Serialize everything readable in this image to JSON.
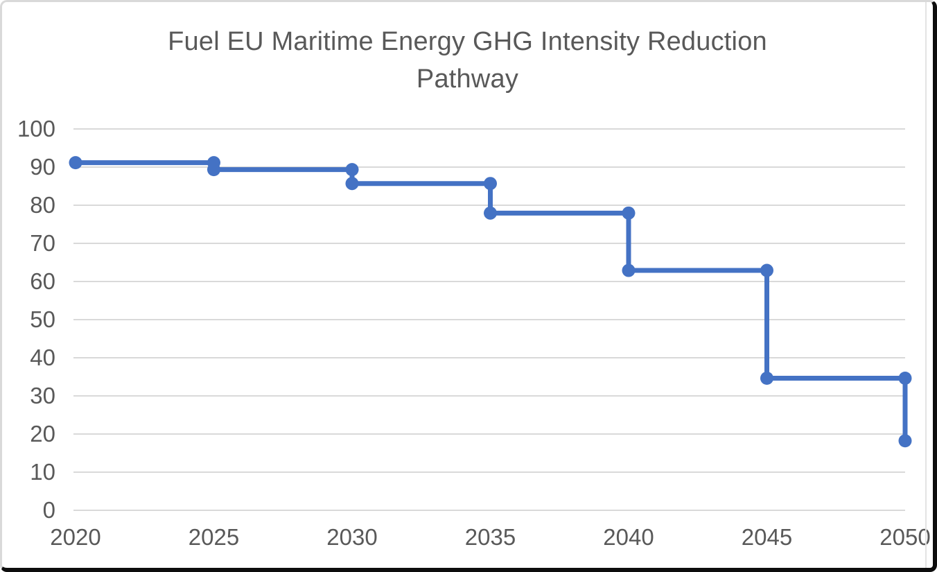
{
  "title": {
    "text": "Fuel EU Maritime Energy GHG Intensity Reduction Pathway",
    "color": "#595959"
  },
  "chart_data": {
    "type": "line",
    "step": "after",
    "title": "Fuel EU Maritime Energy GHG Intensity Reduction Pathway",
    "x": [
      2020,
      2025,
      2030,
      2035,
      2040,
      2045,
      2050
    ],
    "values": [
      91.16,
      89.34,
      85.69,
      77.94,
      62.9,
      34.64,
      18.23
    ],
    "x_tick_labels": [
      "2020",
      "2025",
      "2030",
      "2035",
      "2040",
      "2045",
      "2050"
    ],
    "y_ticks": [
      0,
      10,
      20,
      30,
      40,
      50,
      60,
      70,
      80,
      90,
      100
    ],
    "ylim": [
      0,
      100
    ],
    "xlim": [
      2020,
      2050
    ],
    "xlabel": "",
    "ylabel": "",
    "grid": true,
    "legend": "none",
    "marker": "circle",
    "line_color": "#4472C4",
    "marker_color": "#4472C4",
    "gridline_color": "#D9D9D9",
    "tick_label_color": "#595959"
  }
}
